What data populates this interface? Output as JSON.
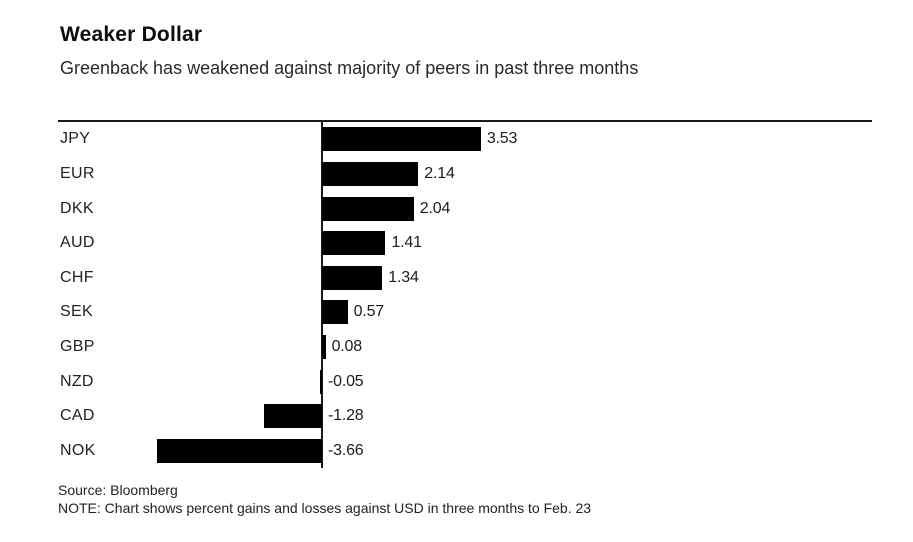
{
  "header": {
    "title": "Weaker Dollar",
    "subtitle": "Greenback has weakened against majority of peers in past three months"
  },
  "chart_data": {
    "type": "bar",
    "orientation": "horizontal",
    "title": "Weaker Dollar",
    "subtitle": "Greenback has weakened against majority of peers in past three months",
    "categories": [
      "JPY",
      "EUR",
      "DKK",
      "AUD",
      "CHF",
      "SEK",
      "GBP",
      "NZD",
      "CAD",
      "NOK"
    ],
    "values": [
      3.53,
      2.14,
      2.04,
      1.41,
      1.34,
      0.57,
      0.08,
      -0.05,
      -1.28,
      -3.66
    ],
    "value_labels": [
      "3.53",
      "2.14",
      "2.04",
      "1.41",
      "1.34",
      "0.57",
      "0.08",
      "-0.05",
      "-1.28",
      "-3.66"
    ],
    "unit": "percent change vs USD over three months",
    "xlabel": "",
    "ylabel": "",
    "xlim": [
      -4.0,
      4.0
    ],
    "grid": false,
    "legend": "none",
    "data_labels": "outside-end"
  },
  "footer": {
    "source": "Source: Bloomberg",
    "note": "NOTE: Chart shows percent gains and losses against USD in three months to Feb. 23"
  },
  "colors": {
    "bar": "#000000",
    "rule": "#1a1a1a",
    "text": "#1c1c1c",
    "background": "#ffffff"
  }
}
